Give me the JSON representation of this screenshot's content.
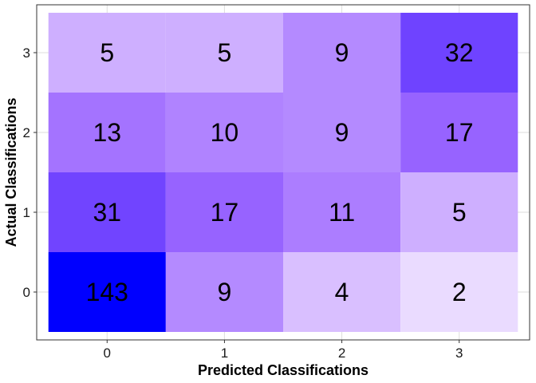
{
  "chart_data": {
    "type": "heatmap",
    "title": "",
    "xlabel": "Predicted Classifications",
    "ylabel": "Actual Classifications",
    "x_categories": [
      "0",
      "1",
      "2",
      "3"
    ],
    "y_categories": [
      "0",
      "1",
      "2",
      "3"
    ],
    "cells": [
      {
        "x": "0",
        "y": "3",
        "value": 5
      },
      {
        "x": "1",
        "y": "3",
        "value": 5
      },
      {
        "x": "2",
        "y": "3",
        "value": 9
      },
      {
        "x": "3",
        "y": "3",
        "value": 32
      },
      {
        "x": "0",
        "y": "2",
        "value": 13
      },
      {
        "x": "1",
        "y": "2",
        "value": 10
      },
      {
        "x": "2",
        "y": "2",
        "value": 9
      },
      {
        "x": "3",
        "y": "2",
        "value": 17
      },
      {
        "x": "0",
        "y": "1",
        "value": 31
      },
      {
        "x": "1",
        "y": "1",
        "value": 17
      },
      {
        "x": "2",
        "y": "1",
        "value": 11
      },
      {
        "x": "3",
        "y": "1",
        "value": 5
      },
      {
        "x": "0",
        "y": "0",
        "value": 143
      },
      {
        "x": "1",
        "y": "0",
        "value": 9
      },
      {
        "x": "2",
        "y": "0",
        "value": 4
      },
      {
        "x": "3",
        "y": "0",
        "value": 2
      }
    ],
    "grid": true,
    "legend": "none",
    "color_low": "#ffffff",
    "color_high": "#0000ff"
  }
}
